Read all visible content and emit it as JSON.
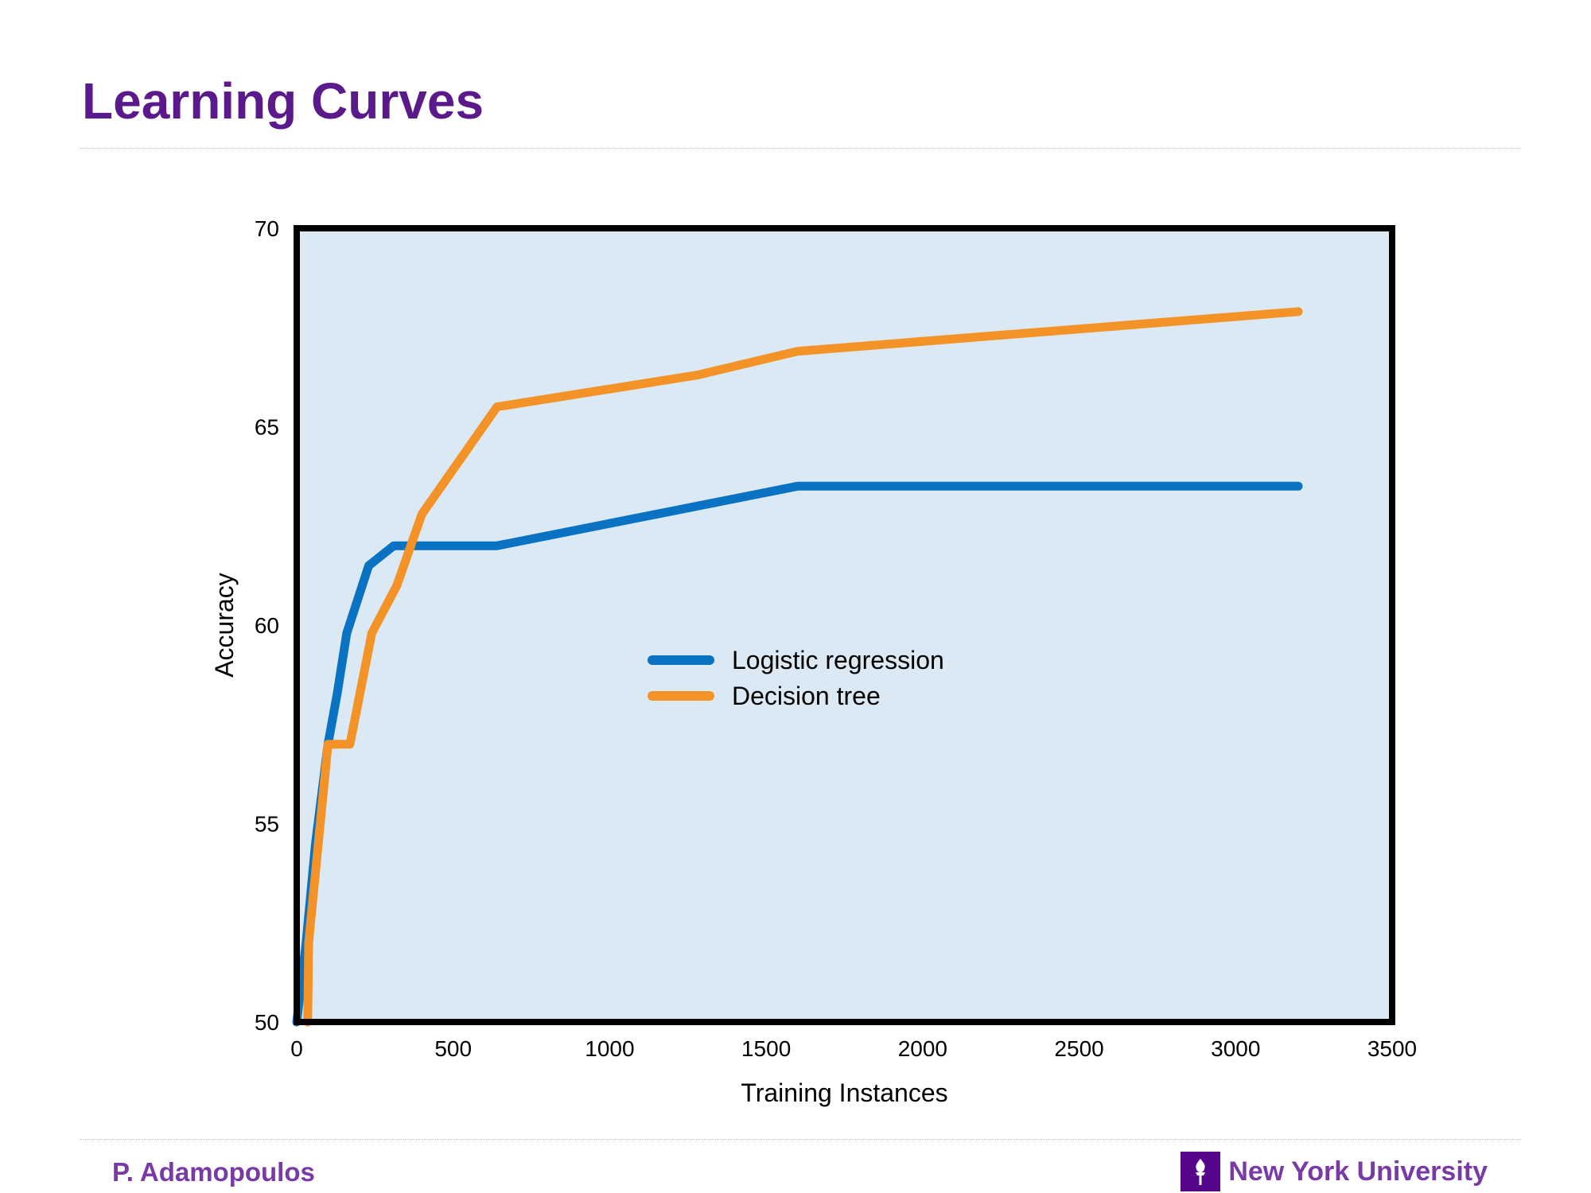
{
  "slide": {
    "title": "Learning Curves",
    "author": "P. Adamopoulos",
    "institution": "New York University"
  },
  "colors": {
    "title": "#5b1a8b",
    "footer_text": "#7a3aa6",
    "logo_bg": "#57068c",
    "plot_bg": "#dbe9f4",
    "frame": "#000000"
  },
  "chart_data": {
    "type": "line",
    "xlabel": "Training Instances",
    "ylabel": "Accuracy",
    "xlim": [
      0,
      3500
    ],
    "ylim": [
      50,
      70
    ],
    "xticks": [
      0,
      500,
      1000,
      1500,
      2000,
      2500,
      3000,
      3500
    ],
    "yticks": [
      50,
      55,
      60,
      65,
      70
    ],
    "grid": false,
    "legend_position": "center",
    "series": [
      {
        "name": "Logistic regression",
        "color": "#0a72c2",
        "x": [
          0,
          30,
          60,
          100,
          130,
          160,
          230,
          310,
          640,
          1280,
          1600,
          3200
        ],
        "y": [
          50,
          52,
          54.5,
          57,
          58.3,
          59.8,
          61.5,
          62,
          62,
          63,
          63.5,
          63.5
        ]
      },
      {
        "name": "Decision tree",
        "color": "#f39226",
        "x": [
          35,
          38,
          100,
          170,
          240,
          320,
          400,
          640,
          1280,
          1600,
          3200
        ],
        "y": [
          50,
          52,
          57,
          57,
          59.8,
          61,
          62.8,
          65.5,
          66.3,
          66.9,
          67.9
        ]
      }
    ]
  }
}
